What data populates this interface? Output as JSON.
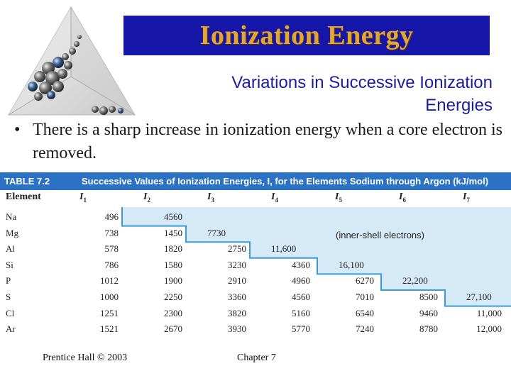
{
  "header": {
    "title": "Ionization Energy",
    "subtitle_line1": "Variations in Successive Ionization",
    "subtitle_line2": "Energies"
  },
  "bullet": {
    "symbol": "•",
    "text": "There is a sharp increase in ionization energy when a core electron is removed."
  },
  "table": {
    "label": "TABLE 7.2",
    "caption": "Successive Values of Ionization Energies, I, for the Elements Sodium through Argon (kJ/mol)",
    "columns": [
      "Element",
      "I1",
      "I2",
      "I3",
      "I4",
      "I5",
      "I6",
      "I7"
    ],
    "column_heads": [
      {
        "base": "Element",
        "sub": ""
      },
      {
        "base": "I",
        "sub": "1"
      },
      {
        "base": "I",
        "sub": "2"
      },
      {
        "base": "I",
        "sub": "3"
      },
      {
        "base": "I",
        "sub": "4"
      },
      {
        "base": "I",
        "sub": "5"
      },
      {
        "base": "I",
        "sub": "6"
      },
      {
        "base": "I",
        "sub": "7"
      }
    ],
    "inner_shell_note": "(inner-shell electrons)",
    "rows": [
      {
        "element": "Na",
        "values": [
          "496",
          "4560",
          "",
          "",
          "",
          "",
          ""
        ]
      },
      {
        "element": "Mg",
        "values": [
          "738",
          "1450",
          "7730",
          "",
          "",
          "",
          ""
        ]
      },
      {
        "element": "Al",
        "values": [
          "578",
          "1820",
          "2750",
          "11,600",
          "",
          "",
          ""
        ]
      },
      {
        "element": "Si",
        "values": [
          "786",
          "1580",
          "3230",
          "4360",
          "16,100",
          "",
          ""
        ]
      },
      {
        "element": "P",
        "values": [
          "1012",
          "1900",
          "2910",
          "4960",
          "6270",
          "22,200",
          ""
        ]
      },
      {
        "element": "S",
        "values": [
          "1000",
          "2250",
          "3360",
          "4560",
          "7010",
          "8500",
          "27,100"
        ]
      },
      {
        "element": "Cl",
        "values": [
          "1251",
          "2300",
          "3820",
          "5160",
          "6540",
          "9460",
          "11,000"
        ]
      },
      {
        "element": "Ar",
        "values": [
          "1521",
          "2670",
          "3930",
          "5770",
          "7240",
          "8780",
          "12,000"
        ]
      }
    ]
  },
  "footer": {
    "left": "Prentice Hall © 2003",
    "center": "Chapter 7"
  },
  "colors": {
    "title_bar": "#1616a8",
    "title_text": "#e3a537",
    "subtitle": "#1c1ca0",
    "table_header": "#2c72c4",
    "inner_shell_fill": "#d6e9f7",
    "boundary_line": "#3a9bd5"
  }
}
